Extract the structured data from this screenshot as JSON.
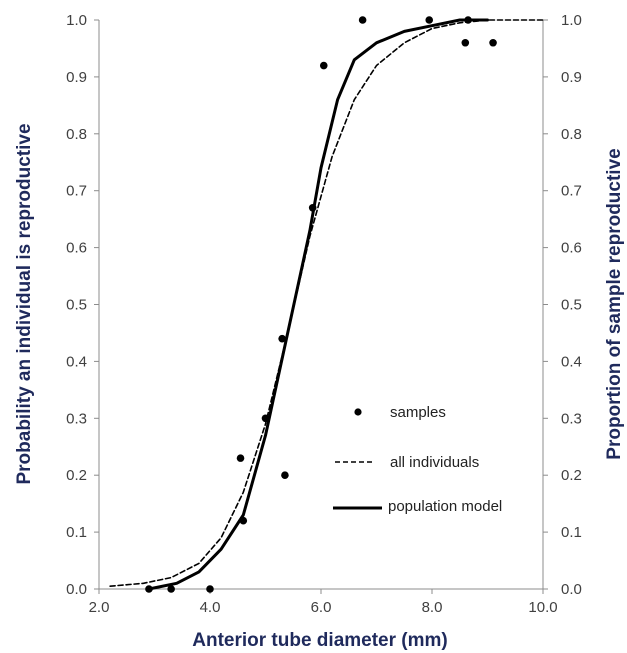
{
  "chart_data": {
    "type": "scatter",
    "title": "",
    "xlabel": "Anterior tube diameter (mm)",
    "ylabel_left": "Probability an individual is reproductive",
    "ylabel_right": "Proportion of sample reproductive",
    "xlim": [
      2.0,
      10.0
    ],
    "ylim": [
      0.0,
      1.0
    ],
    "x_ticks": [
      "2.0",
      "4.0",
      "6.0",
      "8.0",
      "10.0"
    ],
    "y_ticks": [
      "0.0",
      "0.1",
      "0.2",
      "0.3",
      "0.4",
      "0.5",
      "0.6",
      "0.7",
      "0.8",
      "0.9",
      "1.0"
    ],
    "grid": false,
    "legend_position": "lower-right",
    "series": [
      {
        "name": "samples",
        "kind": "points",
        "points": [
          {
            "x": 2.9,
            "y": 0.0
          },
          {
            "x": 3.3,
            "y": 0.0
          },
          {
            "x": 4.0,
            "y": 0.0
          },
          {
            "x": 4.55,
            "y": 0.23
          },
          {
            "x": 4.6,
            "y": 0.12
          },
          {
            "x": 5.0,
            "y": 0.3
          },
          {
            "x": 5.3,
            "y": 0.44
          },
          {
            "x": 5.35,
            "y": 0.2
          },
          {
            "x": 5.85,
            "y": 0.67
          },
          {
            "x": 6.05,
            "y": 0.92
          },
          {
            "x": 6.75,
            "y": 1.0
          },
          {
            "x": 7.95,
            "y": 1.0
          },
          {
            "x": 8.6,
            "y": 0.96
          },
          {
            "x": 8.65,
            "y": 1.0
          },
          {
            "x": 9.1,
            "y": 0.96
          }
        ]
      },
      {
        "name": "all individuals",
        "kind": "dashed-line",
        "points": [
          {
            "x": 2.2,
            "y": 0.005
          },
          {
            "x": 2.8,
            "y": 0.01
          },
          {
            "x": 3.3,
            "y": 0.02
          },
          {
            "x": 3.8,
            "y": 0.045
          },
          {
            "x": 4.2,
            "y": 0.09
          },
          {
            "x": 4.6,
            "y": 0.17
          },
          {
            "x": 5.0,
            "y": 0.29
          },
          {
            "x": 5.4,
            "y": 0.45
          },
          {
            "x": 5.8,
            "y": 0.62
          },
          {
            "x": 6.2,
            "y": 0.76
          },
          {
            "x": 6.6,
            "y": 0.86
          },
          {
            "x": 7.0,
            "y": 0.92
          },
          {
            "x": 7.5,
            "y": 0.96
          },
          {
            "x": 8.0,
            "y": 0.985
          },
          {
            "x": 8.5,
            "y": 0.995
          },
          {
            "x": 9.0,
            "y": 1.0
          },
          {
            "x": 10.0,
            "y": 1.0
          }
        ]
      },
      {
        "name": "population model",
        "kind": "solid-line",
        "points": [
          {
            "x": 2.9,
            "y": 0.0
          },
          {
            "x": 3.4,
            "y": 0.01
          },
          {
            "x": 3.8,
            "y": 0.03
          },
          {
            "x": 4.2,
            "y": 0.07
          },
          {
            "x": 4.6,
            "y": 0.13
          },
          {
            "x": 5.0,
            "y": 0.27
          },
          {
            "x": 5.4,
            "y": 0.45
          },
          {
            "x": 5.8,
            "y": 0.63
          },
          {
            "x": 6.0,
            "y": 0.74
          },
          {
            "x": 6.3,
            "y": 0.86
          },
          {
            "x": 6.6,
            "y": 0.93
          },
          {
            "x": 7.0,
            "y": 0.96
          },
          {
            "x": 7.5,
            "y": 0.98
          },
          {
            "x": 8.0,
            "y": 0.99
          },
          {
            "x": 8.5,
            "y": 1.0
          },
          {
            "x": 9.0,
            "y": 1.0
          }
        ]
      }
    ]
  }
}
